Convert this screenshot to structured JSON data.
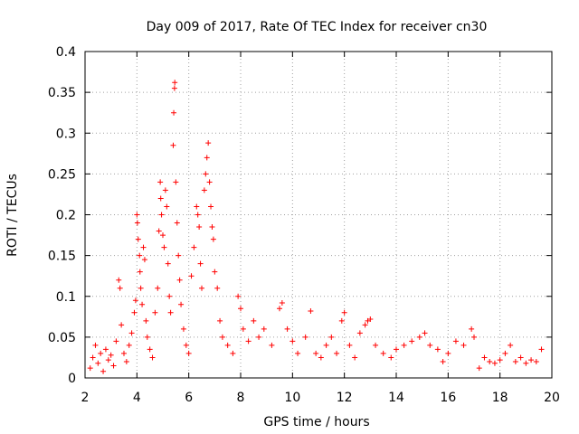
{
  "chart_data": {
    "type": "scatter",
    "title": "Day 009 of 2017, Rate Of TEC Index for receiver cn30",
    "xlabel": "GPS time / hours",
    "ylabel": "ROTI / TECUs",
    "xlim": [
      2,
      20
    ],
    "ylim": [
      0,
      0.4
    ],
    "grid": true,
    "marker": "plus",
    "color": "#ff0000",
    "xticks": [
      {
        "value": 2,
        "label": "2"
      },
      {
        "value": 4,
        "label": "4"
      },
      {
        "value": 6,
        "label": "6"
      },
      {
        "value": 8,
        "label": "8"
      },
      {
        "value": 10,
        "label": "10"
      },
      {
        "value": 12,
        "label": "12"
      },
      {
        "value": 14,
        "label": "14"
      },
      {
        "value": 16,
        "label": "16"
      },
      {
        "value": 18,
        "label": "18"
      },
      {
        "value": 20,
        "label": "20"
      }
    ],
    "yticks": [
      {
        "value": 0,
        "label": "0"
      },
      {
        "value": 0.05,
        "label": "0.05"
      },
      {
        "value": 0.1,
        "label": "0.1"
      },
      {
        "value": 0.15,
        "label": "0.15"
      },
      {
        "value": 0.2,
        "label": "0.2"
      },
      {
        "value": 0.25,
        "label": "0.25"
      },
      {
        "value": 0.3,
        "label": "0.3"
      },
      {
        "value": 0.35,
        "label": "0.35"
      },
      {
        "value": 0.4,
        "label": "0.4"
      }
    ],
    "series": [
      {
        "name": "ROTI",
        "points": [
          [
            2.2,
            0.012
          ],
          [
            2.3,
            0.025
          ],
          [
            2.4,
            0.04
          ],
          [
            2.5,
            0.018
          ],
          [
            2.6,
            0.03
          ],
          [
            2.7,
            0.008
          ],
          [
            2.8,
            0.035
          ],
          [
            2.9,
            0.022
          ],
          [
            3.0,
            0.028
          ],
          [
            3.1,
            0.015
          ],
          [
            3.2,
            0.045
          ],
          [
            3.3,
            0.12
          ],
          [
            3.35,
            0.11
          ],
          [
            3.4,
            0.065
          ],
          [
            3.5,
            0.03
          ],
          [
            3.6,
            0.02
          ],
          [
            3.7,
            0.04
          ],
          [
            3.8,
            0.055
          ],
          [
            3.9,
            0.08
          ],
          [
            3.95,
            0.095
          ],
          [
            4.0,
            0.2
          ],
          [
            4.02,
            0.19
          ],
          [
            4.05,
            0.17
          ],
          [
            4.1,
            0.15
          ],
          [
            4.12,
            0.13
          ],
          [
            4.15,
            0.11
          ],
          [
            4.2,
            0.09
          ],
          [
            4.25,
            0.16
          ],
          [
            4.3,
            0.145
          ],
          [
            4.35,
            0.07
          ],
          [
            4.4,
            0.05
          ],
          [
            4.5,
            0.035
          ],
          [
            4.6,
            0.025
          ],
          [
            4.7,
            0.08
          ],
          [
            4.8,
            0.11
          ],
          [
            4.85,
            0.18
          ],
          [
            4.9,
            0.24
          ],
          [
            4.92,
            0.22
          ],
          [
            4.95,
            0.2
          ],
          [
            5.0,
            0.175
          ],
          [
            5.05,
            0.16
          ],
          [
            5.1,
            0.23
          ],
          [
            5.15,
            0.21
          ],
          [
            5.2,
            0.14
          ],
          [
            5.25,
            0.1
          ],
          [
            5.3,
            0.08
          ],
          [
            5.4,
            0.285
          ],
          [
            5.42,
            0.325
          ],
          [
            5.45,
            0.355
          ],
          [
            5.46,
            0.362
          ],
          [
            5.5,
            0.24
          ],
          [
            5.55,
            0.19
          ],
          [
            5.6,
            0.15
          ],
          [
            5.65,
            0.12
          ],
          [
            5.7,
            0.09
          ],
          [
            5.8,
            0.06
          ],
          [
            5.9,
            0.04
          ],
          [
            6.0,
            0.03
          ],
          [
            6.1,
            0.125
          ],
          [
            6.2,
            0.16
          ],
          [
            6.3,
            0.21
          ],
          [
            6.35,
            0.2
          ],
          [
            6.4,
            0.185
          ],
          [
            6.45,
            0.14
          ],
          [
            6.5,
            0.11
          ],
          [
            6.6,
            0.23
          ],
          [
            6.65,
            0.25
          ],
          [
            6.7,
            0.27
          ],
          [
            6.75,
            0.288
          ],
          [
            6.8,
            0.24
          ],
          [
            6.85,
            0.21
          ],
          [
            6.9,
            0.185
          ],
          [
            6.95,
            0.17
          ],
          [
            7.0,
            0.13
          ],
          [
            7.1,
            0.11
          ],
          [
            7.2,
            0.07
          ],
          [
            7.3,
            0.05
          ],
          [
            7.5,
            0.04
          ],
          [
            7.7,
            0.03
          ],
          [
            7.9,
            0.1
          ],
          [
            8.0,
            0.085
          ],
          [
            8.1,
            0.06
          ],
          [
            8.3,
            0.045
          ],
          [
            8.5,
            0.07
          ],
          [
            8.7,
            0.05
          ],
          [
            8.9,
            0.06
          ],
          [
            9.2,
            0.04
          ],
          [
            9.5,
            0.085
          ],
          [
            9.6,
            0.092
          ],
          [
            9.8,
            0.06
          ],
          [
            10.0,
            0.045
          ],
          [
            10.2,
            0.03
          ],
          [
            10.5,
            0.05
          ],
          [
            10.7,
            0.082
          ],
          [
            10.9,
            0.03
          ],
          [
            11.1,
            0.025
          ],
          [
            11.3,
            0.04
          ],
          [
            11.5,
            0.05
          ],
          [
            11.7,
            0.03
          ],
          [
            11.9,
            0.07
          ],
          [
            12.0,
            0.08
          ],
          [
            12.2,
            0.04
          ],
          [
            12.4,
            0.025
          ],
          [
            12.6,
            0.055
          ],
          [
            12.8,
            0.065
          ],
          [
            12.9,
            0.07
          ],
          [
            13.0,
            0.072
          ],
          [
            13.2,
            0.04
          ],
          [
            13.5,
            0.03
          ],
          [
            13.8,
            0.025
          ],
          [
            14.0,
            0.035
          ],
          [
            14.3,
            0.04
          ],
          [
            14.6,
            0.045
          ],
          [
            14.9,
            0.05
          ],
          [
            15.1,
            0.055
          ],
          [
            15.3,
            0.04
          ],
          [
            15.6,
            0.035
          ],
          [
            15.8,
            0.02
          ],
          [
            16.0,
            0.03
          ],
          [
            16.3,
            0.045
          ],
          [
            16.6,
            0.04
          ],
          [
            16.9,
            0.06
          ],
          [
            17.0,
            0.05
          ],
          [
            17.2,
            0.012
          ],
          [
            17.4,
            0.025
          ],
          [
            17.6,
            0.02
          ],
          [
            17.8,
            0.018
          ],
          [
            18.0,
            0.022
          ],
          [
            18.2,
            0.03
          ],
          [
            18.4,
            0.04
          ],
          [
            18.6,
            0.02
          ],
          [
            18.8,
            0.025
          ],
          [
            19.0,
            0.018
          ],
          [
            19.2,
            0.022
          ],
          [
            19.4,
            0.02
          ],
          [
            19.6,
            0.035
          ]
        ]
      }
    ]
  }
}
